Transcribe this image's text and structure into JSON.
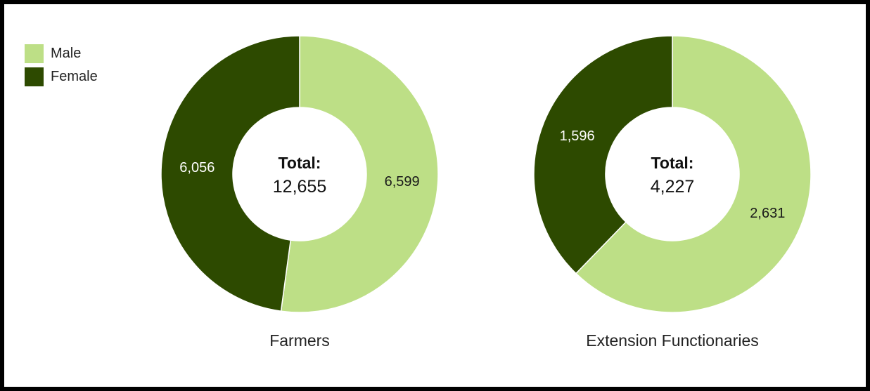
{
  "colors": {
    "male": "#bddf86",
    "female": "#2d4a00"
  },
  "legend": [
    {
      "label": "Male",
      "color": "#bddf86"
    },
    {
      "label": "Female",
      "color": "#2d4a00"
    }
  ],
  "chart_data": [
    {
      "type": "pie",
      "donut": true,
      "title": "Farmers",
      "center_label": "Total:",
      "center_value": "12,655",
      "total": 12655,
      "series": [
        {
          "name": "Male",
          "value": 6599,
          "label": "6,599"
        },
        {
          "name": "Female",
          "value": 6056,
          "label": "6,056"
        }
      ],
      "legend_position": "top-left"
    },
    {
      "type": "pie",
      "donut": true,
      "title": "Extension Functionaries",
      "center_label": "Total:",
      "center_value": "4,227",
      "total": 4227,
      "series": [
        {
          "name": "Male",
          "value": 2631,
          "label": "2,631"
        },
        {
          "name": "Female",
          "value": 1596,
          "label": "1,596"
        }
      ],
      "legend_position": "top-left"
    }
  ]
}
